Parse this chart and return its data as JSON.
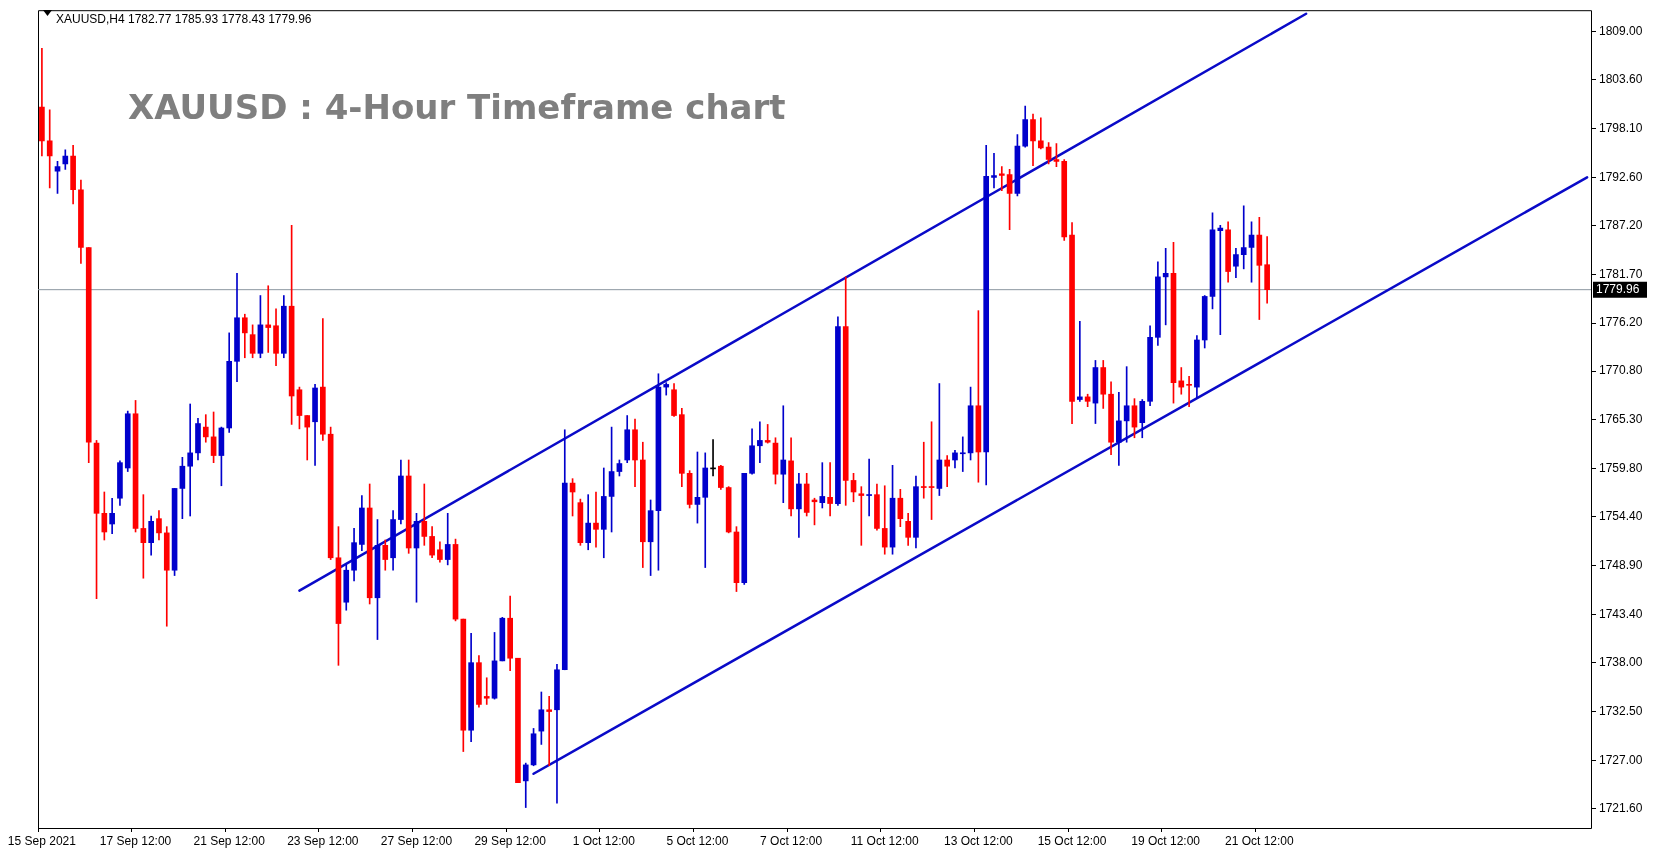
{
  "chart_data": {
    "type": "candlestick",
    "title": "XAUUSD : 4-Hour Timeframe chart",
    "subtitle": "XAUUSD,H4 1782.77 1785.93 1778.43 1779.96",
    "categories": [
      "15 Sep 2021",
      null,
      null,
      null,
      null,
      null,
      null,
      null,
      null,
      null,
      null,
      null,
      "17 Sep 12:00",
      null,
      null,
      null,
      null,
      null,
      null,
      null,
      null,
      null,
      null,
      null,
      "21 Sep 12:00",
      null,
      null,
      null,
      null,
      null,
      null,
      null,
      null,
      null,
      null,
      null,
      "23 Sep 12:00",
      null,
      null,
      null,
      null,
      null,
      null,
      null,
      null,
      null,
      null,
      null,
      "27 Sep 12:00",
      null,
      null,
      null,
      null,
      null,
      null,
      null,
      null,
      null,
      null,
      null,
      "29 Sep 12:00",
      null,
      null,
      null,
      null,
      null,
      null,
      null,
      null,
      null,
      null,
      null,
      "1 Oct 12:00",
      null,
      null,
      null,
      null,
      null,
      null,
      null,
      null,
      null,
      null,
      null,
      "5 Oct 12:00",
      null,
      null,
      null,
      null,
      null,
      null,
      null,
      null,
      null,
      null,
      null,
      "7 Oct 12:00",
      null,
      null,
      null,
      null,
      null,
      null,
      null,
      null,
      null,
      null,
      null,
      "11 Oct 12:00",
      null,
      null,
      null,
      null,
      null,
      null,
      null,
      null,
      null,
      null,
      null,
      "13 Oct 12:00",
      null,
      null,
      null,
      null,
      null,
      null,
      null,
      null,
      null,
      null,
      null,
      "15 Oct 12:00",
      null,
      null,
      null,
      null,
      null,
      null,
      null,
      null,
      null,
      null,
      null,
      "19 Oct 12:00",
      null,
      null,
      null,
      null,
      null,
      null,
      null,
      null,
      null,
      null,
      null,
      "21 Oct 12:00",
      null,
      null,
      null,
      null,
      null,
      null,
      null,
      null,
      null,
      null,
      null,
      null,
      null,
      null,
      null,
      null,
      null,
      null,
      null,
      null,
      null,
      null,
      null,
      null,
      null,
      null,
      null,
      null,
      null,
      null,
      null,
      null,
      null,
      null,
      null,
      null,
      null,
      null,
      null,
      null,
      null,
      null
    ],
    "ohlc": [
      [
        1800.5,
        1807.1,
        1795.0,
        1796.7
      ],
      [
        1796.7,
        1800.2,
        1791.4,
        1795.0
      ],
      [
        1793.3,
        1794.4,
        1790.8,
        1793.8
      ],
      [
        1794.1,
        1795.7,
        1793.5,
        1795.0
      ],
      [
        1795.0,
        1796.2,
        1789.6,
        1791.2
      ],
      [
        1791.2,
        1792.3,
        1782.9,
        1784.7
      ],
      [
        1784.7,
        1784.7,
        1760.5,
        1762.8
      ],
      [
        1762.7,
        1763.0,
        1745.2,
        1754.8
      ],
      [
        1754.8,
        1757.2,
        1751.8,
        1752.7
      ],
      [
        1753.6,
        1756.5,
        1752.5,
        1754.8
      ],
      [
        1756.5,
        1760.7,
        1755.7,
        1760.5
      ],
      [
        1759.9,
        1766.3,
        1759.5,
        1766.0
      ],
      [
        1766.0,
        1767.5,
        1752.7,
        1753.1
      ],
      [
        1753.1,
        1756.9,
        1747.5,
        1751.5
      ],
      [
        1751.5,
        1754.5,
        1750.1,
        1753.9
      ],
      [
        1754.2,
        1755.1,
        1751.8,
        1752.6
      ],
      [
        1752.6,
        1753.3,
        1742.1,
        1748.4
      ],
      [
        1748.4,
        1757.6,
        1747.8,
        1757.6
      ],
      [
        1757.6,
        1761.1,
        1754.2,
        1760.1
      ],
      [
        1760.1,
        1767.1,
        1754.5,
        1761.6
      ],
      [
        1761.6,
        1765.5,
        1760.8,
        1764.9
      ],
      [
        1764.5,
        1765.9,
        1762.8,
        1763.4
      ],
      [
        1763.4,
        1766.2,
        1760.5,
        1761.3
      ],
      [
        1761.3,
        1764.5,
        1757.9,
        1764.4
      ],
      [
        1764.4,
        1775.1,
        1763.9,
        1771.9
      ],
      [
        1771.9,
        1781.8,
        1769.6,
        1776.8
      ],
      [
        1776.8,
        1777.2,
        1772.3,
        1775.1
      ],
      [
        1774.9,
        1776.0,
        1772.3,
        1772.8
      ],
      [
        1772.8,
        1779.3,
        1772.3,
        1776.0
      ],
      [
        1776.0,
        1780.4,
        1772.9,
        1775.7
      ],
      [
        1775.9,
        1777.8,
        1771.4,
        1772.8
      ],
      [
        1772.8,
        1779.3,
        1772.3,
        1778.1
      ],
      [
        1778.1,
        1787.2,
        1764.8,
        1768.0
      ],
      [
        1768.7,
        1769.0,
        1764.3,
        1765.8
      ],
      [
        1765.8,
        1765.8,
        1760.8,
        1764.5
      ],
      [
        1765.1,
        1769.3,
        1760.2,
        1768.9
      ],
      [
        1769.0,
        1776.7,
        1763.0,
        1763.7
      ],
      [
        1763.7,
        1764.5,
        1749.6,
        1749.8
      ],
      [
        1749.8,
        1753.3,
        1737.7,
        1742.4
      ],
      [
        1744.8,
        1749.0,
        1743.9,
        1748.4
      ],
      [
        1748.4,
        1753.1,
        1747.2,
        1751.5
      ],
      [
        1751.3,
        1756.8,
        1750.6,
        1755.4
      ],
      [
        1755.4,
        1758.1,
        1744.6,
        1745.3
      ],
      [
        1745.3,
        1754.1,
        1740.6,
        1751.2
      ],
      [
        1751.2,
        1751.8,
        1748.4,
        1749.6
      ],
      [
        1749.8,
        1755.1,
        1748.4,
        1754.1
      ],
      [
        1754.1,
        1760.8,
        1753.6,
        1759.0
      ],
      [
        1759.0,
        1760.8,
        1750.3,
        1750.9
      ],
      [
        1750.9,
        1754.8,
        1744.8,
        1753.9
      ],
      [
        1753.9,
        1758.1,
        1751.2,
        1752.2
      ],
      [
        1752.2,
        1753.3,
        1749.8,
        1750.1
      ],
      [
        1750.7,
        1751.6,
        1749.3,
        1749.6
      ],
      [
        1749.6,
        1754.8,
        1749.0,
        1751.3
      ],
      [
        1751.3,
        1751.9,
        1742.7,
        1742.9
      ],
      [
        1742.9,
        1742.9,
        1728.0,
        1730.4
      ],
      [
        1730.4,
        1741.3,
        1729.1,
        1738.0
      ],
      [
        1738.0,
        1738.8,
        1733.0,
        1733.3
      ],
      [
        1734.2,
        1736.3,
        1733.3,
        1734.0
      ],
      [
        1734.0,
        1741.4,
        1733.9,
        1738.2
      ],
      [
        1738.2,
        1743.1,
        1738.2,
        1743.0
      ],
      [
        1743.0,
        1745.5,
        1737.1,
        1738.5
      ],
      [
        1738.5,
        1738.5,
        1724.5,
        1724.5
      ],
      [
        1724.7,
        1726.7,
        1721.7,
        1726.5
      ],
      [
        1726.5,
        1730.6,
        1726.4,
        1730.0
      ],
      [
        1730.3,
        1734.7,
        1728.8,
        1732.7
      ],
      [
        1732.7,
        1734.2,
        1726.4,
        1732.5
      ],
      [
        1732.7,
        1737.8,
        1722.2,
        1737.2
      ],
      [
        1737.2,
        1764.2,
        1737.2,
        1758.2
      ],
      [
        1758.2,
        1758.7,
        1754.5,
        1757.2
      ],
      [
        1756.0,
        1756.4,
        1751.2,
        1751.5
      ],
      [
        1751.5,
        1756.9,
        1750.7,
        1753.7
      ],
      [
        1753.7,
        1757.2,
        1751.0,
        1753.0
      ],
      [
        1753.0,
        1759.9,
        1749.8,
        1756.7
      ],
      [
        1756.7,
        1764.5,
        1752.7,
        1759.5
      ],
      [
        1759.5,
        1760.8,
        1759.0,
        1760.4
      ],
      [
        1760.8,
        1765.8,
        1760.5,
        1764.2
      ],
      [
        1764.2,
        1765.4,
        1757.8,
        1760.8
      ],
      [
        1760.8,
        1762.8,
        1748.7,
        1751.6
      ],
      [
        1751.6,
        1756.3,
        1747.8,
        1755.1
      ],
      [
        1755.1,
        1770.5,
        1748.4,
        1769.0
      ],
      [
        1769.0,
        1769.5,
        1768.1,
        1769.3
      ],
      [
        1768.7,
        1769.4,
        1765.7,
        1765.8
      ],
      [
        1765.9,
        1766.6,
        1757.8,
        1759.3
      ],
      [
        1759.3,
        1759.6,
        1755.4,
        1755.8
      ],
      [
        1755.8,
        1761.7,
        1753.7,
        1756.6
      ],
      [
        1756.6,
        1761.6,
        1748.7,
        1759.9
      ],
      [
        1759.8,
        1763.1,
        1759.0,
        1759.8
      ],
      [
        1760.1,
        1760.2,
        1757.5,
        1757.7
      ],
      [
        1757.7,
        1757.8,
        1752.6,
        1752.7
      ],
      [
        1752.7,
        1753.3,
        1746.0,
        1747.0
      ],
      [
        1747.0,
        1759.3,
        1746.8,
        1759.3
      ],
      [
        1759.3,
        1764.3,
        1759.2,
        1762.4
      ],
      [
        1762.4,
        1765.1,
        1760.5,
        1763.0
      ],
      [
        1763.0,
        1764.8,
        1762.7,
        1762.8
      ],
      [
        1762.7,
        1763.3,
        1758.1,
        1759.2
      ],
      [
        1759.2,
        1766.9,
        1756.0,
        1760.8
      ],
      [
        1760.7,
        1763.3,
        1754.5,
        1755.3
      ],
      [
        1755.3,
        1759.3,
        1752.1,
        1758.1
      ],
      [
        1758.1,
        1759.3,
        1754.5,
        1754.9
      ],
      [
        1756.3,
        1756.5,
        1753.5,
        1756.1
      ],
      [
        1756.0,
        1760.5,
        1755.4,
        1756.7
      ],
      [
        1756.6,
        1760.5,
        1754.5,
        1755.9
      ],
      [
        1755.9,
        1776.9,
        1755.7,
        1775.8
      ],
      [
        1775.8,
        1781.4,
        1755.7,
        1758.5
      ],
      [
        1758.5,
        1759.3,
        1756.1,
        1757.2
      ],
      [
        1757.0,
        1757.8,
        1751.2,
        1756.8
      ],
      [
        1756.8,
        1760.9,
        1754.5,
        1756.9
      ],
      [
        1756.9,
        1758.1,
        1752.9,
        1753.1
      ],
      [
        1753.1,
        1757.9,
        1750.2,
        1751.0
      ],
      [
        1751.0,
        1760.2,
        1750.2,
        1756.5
      ],
      [
        1756.5,
        1757.5,
        1753.3,
        1754.2
      ],
      [
        1753.9,
        1754.8,
        1751.2,
        1752.1
      ],
      [
        1752.1,
        1759.0,
        1750.9,
        1757.8
      ],
      [
        1757.8,
        1762.8,
        1756.5,
        1757.7
      ],
      [
        1757.8,
        1765.1,
        1754.1,
        1757.7
      ],
      [
        1757.6,
        1769.4,
        1756.8,
        1760.8
      ],
      [
        1760.8,
        1761.3,
        1757.8,
        1760.1
      ],
      [
        1760.8,
        1761.9,
        1759.9,
        1761.6
      ],
      [
        1761.5,
        1763.4,
        1759.5,
        1761.6
      ],
      [
        1761.6,
        1769.0,
        1760.8,
        1766.9
      ],
      [
        1766.9,
        1777.6,
        1758.3,
        1761.7
      ],
      [
        1761.7,
        1796.2,
        1758.0,
        1792.7
      ],
      [
        1792.6,
        1795.3,
        1791.4,
        1792.8
      ],
      [
        1793.0,
        1793.8,
        1791.1,
        1792.8
      ],
      [
        1792.9,
        1793.5,
        1786.7,
        1790.8
      ],
      [
        1790.8,
        1797.4,
        1790.5,
        1796.1
      ],
      [
        1796.1,
        1800.6,
        1796.0,
        1799.1
      ],
      [
        1799.1,
        1799.7,
        1793.9,
        1796.7
      ],
      [
        1796.7,
        1799.3,
        1795.8,
        1795.9
      ],
      [
        1796.0,
        1796.5,
        1794.1,
        1794.6
      ],
      [
        1794.6,
        1796.4,
        1793.8,
        1794.4
      ],
      [
        1794.4,
        1794.6,
        1785.5,
        1785.9
      ],
      [
        1786.1,
        1787.5,
        1764.9,
        1767.4
      ],
      [
        1767.6,
        1776.4,
        1767.4,
        1767.9
      ],
      [
        1767.9,
        1768.2,
        1766.8,
        1767.4
      ],
      [
        1767.2,
        1772.0,
        1764.9,
        1771.2
      ],
      [
        1771.2,
        1772.0,
        1766.6,
        1768.2
      ],
      [
        1768.2,
        1769.6,
        1761.4,
        1762.8
      ],
      [
        1762.8,
        1768.4,
        1760.2,
        1765.2
      ],
      [
        1765.2,
        1771.3,
        1762.8,
        1766.9
      ],
      [
        1766.9,
        1767.7,
        1763.3,
        1764.5
      ],
      [
        1765.0,
        1767.6,
        1763.3,
        1767.4
      ],
      [
        1767.4,
        1775.9,
        1766.9,
        1774.6
      ],
      [
        1774.6,
        1783.1,
        1773.7,
        1781.4
      ],
      [
        1781.4,
        1784.6,
        1776.0,
        1781.8
      ],
      [
        1781.8,
        1785.3,
        1767.2,
        1769.5
      ],
      [
        1769.7,
        1771.2,
        1768.2,
        1769.0
      ],
      [
        1769.3,
        1770.2,
        1766.8,
        1769.2
      ],
      [
        1769.0,
        1774.8,
        1767.8,
        1774.3
      ],
      [
        1774.3,
        1779.3,
        1773.4,
        1779.2
      ],
      [
        1779.2,
        1788.6,
        1777.8,
        1786.7
      ],
      [
        1786.6,
        1787.2,
        1774.9,
        1786.9
      ],
      [
        1786.7,
        1787.6,
        1780.8,
        1782.0
      ],
      [
        1782.6,
        1784.6,
        1781.3,
        1783.9
      ],
      [
        1783.9,
        1789.4,
        1782.3,
        1784.7
      ],
      [
        1784.7,
        1787.6,
        1780.8,
        1786.1
      ],
      [
        1786.1,
        1788.1,
        1776.6,
        1782.7
      ],
      [
        1782.77,
        1785.93,
        1778.43,
        1779.96
      ],
      null,
      null,
      null,
      null,
      null,
      null,
      null,
      null,
      null,
      null,
      null,
      null,
      null,
      null,
      null,
      null,
      null,
      null,
      null,
      null,
      null,
      null,
      null,
      null,
      null,
      null,
      null,
      null,
      null,
      null,
      null,
      null,
      null,
      null,
      null,
      null,
      null,
      null,
      null,
      null,
      null
    ],
    "colors": [
      "#ff0000",
      "#ff0000",
      "#0000cc",
      "#0000cc",
      "#ff0000",
      "#ff0000",
      "#ff0000",
      "#ff0000",
      "#ff0000",
      "#0000cc",
      "#0000cc",
      "#0000cc",
      "#ff0000",
      "#ff0000",
      "#0000cc",
      "#ff0000",
      "#ff0000",
      "#0000cc",
      "#0000cc",
      "#0000cc",
      "#0000cc",
      "#ff0000",
      "#ff0000",
      "#0000cc",
      "#0000cc",
      "#0000cc",
      "#ff0000",
      "#ff0000",
      "#0000cc",
      "#ff0000",
      "#ff0000",
      "#0000cc",
      "#ff0000",
      "#ff0000",
      "#ff0000",
      "#0000cc",
      "#ff0000",
      "#ff0000",
      "#ff0000",
      "#0000cc",
      "#0000cc",
      "#0000cc",
      "#ff0000",
      "#0000cc",
      "#ff0000",
      "#0000cc",
      "#0000cc",
      "#ff0000",
      "#0000cc",
      "#ff0000",
      "#ff0000",
      "#ff0000",
      "#0000cc",
      "#ff0000",
      "#ff0000",
      "#0000cc",
      "#ff0000",
      "#ff0000",
      "#0000cc",
      "#0000cc",
      "#ff0000",
      "#ff0000",
      "#0000cc",
      "#0000cc",
      "#0000cc",
      "#ff0000",
      "#0000cc",
      "#0000cc",
      "#ff0000",
      "#ff0000",
      "#0000cc",
      "#ff0000",
      "#0000cc",
      "#0000cc",
      "#0000cc",
      "#0000cc",
      "#ff0000",
      "#ff0000",
      "#0000cc",
      "#0000cc",
      "#0000cc",
      "#ff0000",
      "#ff0000",
      "#ff0000",
      "#0000cc",
      "#0000cc",
      "#000000",
      "#ff0000",
      "#ff0000",
      "#ff0000",
      "#0000cc",
      "#0000cc",
      "#0000cc",
      "#ff0000",
      "#ff0000",
      "#0000cc",
      "#ff0000",
      "#0000cc",
      "#ff0000",
      "#ff0000",
      "#0000cc",
      "#ff0000",
      "#0000cc",
      "#ff0000",
      "#ff0000",
      "#ff0000",
      "#0000cc",
      "#ff0000",
      "#ff0000",
      "#0000cc",
      "#ff0000",
      "#ff0000",
      "#0000cc",
      "#ff0000",
      "#ff0000",
      "#0000cc",
      "#ff0000",
      "#0000cc",
      "#0000cc",
      "#0000cc",
      "#ff0000",
      "#0000cc",
      "#0000cc",
      "#ff0000",
      "#ff0000",
      "#0000cc",
      "#0000cc",
      "#ff0000",
      "#ff0000",
      "#ff0000",
      "#ff0000",
      "#ff0000",
      "#ff0000",
      "#0000cc",
      "#ff0000",
      "#0000cc",
      "#ff0000",
      "#ff0000",
      "#0000cc",
      "#0000cc",
      "#ff0000",
      "#0000cc",
      "#0000cc",
      "#0000cc",
      "#0000cc",
      "#ff0000",
      "#ff0000",
      "#ff0000",
      "#0000cc",
      "#0000cc",
      "#0000cc",
      "#0000cc",
      "#ff0000",
      "#0000cc",
      "#0000cc",
      "#0000cc",
      "#ff0000",
      "#ff0000",
      null,
      null,
      null,
      null,
      null,
      null,
      null,
      null,
      null,
      null,
      null,
      null,
      null,
      null,
      null,
      null,
      null,
      null,
      null,
      null,
      null,
      null,
      null,
      null,
      null,
      null,
      null,
      null,
      null,
      null,
      null,
      null,
      null,
      null,
      null,
      null,
      null,
      null,
      null,
      null,
      null
    ],
    "series": [
      {
        "type": "line",
        "color": "#0a0ac8",
        "values": [
          null,
          null,
          null,
          null,
          null,
          null,
          null,
          null,
          null,
          null,
          null,
          null,
          null,
          null,
          null,
          null,
          null,
          null,
          null,
          null,
          null,
          null,
          null,
          null,
          null,
          null,
          null,
          null,
          null,
          null,
          null,
          null,
          null,
          1746.1,
          null,
          null,
          null,
          null,
          null,
          null,
          null,
          null,
          null,
          null,
          null,
          null,
          null,
          null,
          null,
          null,
          null,
          null,
          null,
          null,
          null,
          null,
          null,
          null,
          null,
          null,
          null,
          null,
          null,
          null,
          null,
          null,
          null,
          null,
          null,
          null,
          null,
          null,
          null,
          null,
          null,
          null,
          null,
          null,
          null,
          null,
          null,
          null,
          null,
          null,
          null,
          null,
          null,
          null,
          null,
          null,
          null,
          null,
          null,
          null,
          null,
          null,
          null,
          null,
          null,
          null,
          null,
          null,
          null,
          null,
          null,
          null,
          null,
          null,
          null,
          null,
          null,
          null,
          null,
          null,
          null,
          null,
          null,
          null,
          null,
          null,
          null,
          null,
          null,
          null,
          null,
          null,
          null,
          null,
          null,
          null,
          null,
          null,
          null,
          null,
          null,
          null,
          null,
          null,
          null,
          null,
          null,
          null,
          null,
          null,
          null,
          null,
          null,
          null,
          null,
          null,
          null,
          null,
          null,
          null,
          null,
          null,
          null,
          null,
          null,
          null,
          null,
          null,
          1811.0,
          null,
          null,
          null,
          null,
          null,
          null,
          null,
          null,
          null,
          null,
          null,
          null,
          null,
          null,
          null,
          null,
          null,
          null,
          null,
          null,
          null,
          null,
          null,
          null,
          null,
          null,
          null,
          null,
          null,
          null,
          null,
          null,
          null,
          null,
          null,
          null
        ]
      },
      {
        "type": "line",
        "color": "#0a0ac8",
        "values": [
          null,
          null,
          null,
          null,
          null,
          null,
          null,
          null,
          null,
          null,
          null,
          null,
          null,
          null,
          null,
          null,
          null,
          null,
          null,
          null,
          null,
          null,
          null,
          null,
          null,
          null,
          null,
          null,
          null,
          null,
          null,
          null,
          null,
          null,
          null,
          null,
          null,
          null,
          null,
          null,
          null,
          null,
          null,
          null,
          null,
          null,
          null,
          null,
          null,
          null,
          null,
          null,
          null,
          null,
          null,
          null,
          null,
          null,
          null,
          null,
          null,
          null,
          null,
          1725.5,
          null,
          null,
          null,
          null,
          null,
          null,
          null,
          null,
          null,
          null,
          null,
          null,
          null,
          null,
          null,
          null,
          null,
          null,
          null,
          null,
          null,
          null,
          null,
          null,
          null,
          null,
          null,
          null,
          null,
          null,
          null,
          null,
          null,
          null,
          null,
          null,
          null,
          null,
          null,
          null,
          null,
          null,
          null,
          null,
          null,
          null,
          null,
          null,
          null,
          null,
          null,
          null,
          null,
          null,
          null,
          null,
          null,
          null,
          null,
          null,
          null,
          null,
          null,
          null,
          null,
          null,
          null,
          null,
          null,
          null,
          null,
          null,
          null,
          null,
          null,
          null,
          null,
          null,
          null,
          null,
          null,
          null,
          null,
          null,
          null,
          null,
          null,
          null,
          null,
          null,
          null,
          null,
          null,
          null,
          null,
          null,
          null,
          null,
          null,
          null,
          null,
          null,
          null,
          null,
          null,
          null,
          null,
          null,
          null,
          null,
          null,
          null,
          null,
          null,
          null,
          null,
          null,
          null,
          null,
          null,
          null,
          null,
          null,
          null,
          null,
          null,
          null,
          null,
          null,
          null,
          null,
          null,
          null,
          null,
          1792.6
        ]
      }
    ],
    "ylim": [
      1719.4,
      1811.4
    ],
    "yticks": [
      {
        "value": 1809.0,
        "label": "1809.00"
      },
      {
        "value": 1803.6,
        "label": "1803.60"
      },
      {
        "value": 1798.1,
        "label": "1798.10"
      },
      {
        "value": 1792.6,
        "label": "1792.60"
      },
      {
        "value": 1787.2,
        "label": "1787.20"
      },
      {
        "value": 1781.7,
        "label": "1781.70"
      },
      {
        "value": 1776.2,
        "label": "1776.20"
      },
      {
        "value": 1770.8,
        "label": "1770.80"
      },
      {
        "value": 1765.3,
        "label": "1765.30"
      },
      {
        "value": 1759.8,
        "label": "1759.80"
      },
      {
        "value": 1754.4,
        "label": "1754.40"
      },
      {
        "value": 1748.9,
        "label": "1748.90"
      },
      {
        "value": 1743.4,
        "label": "1743.40"
      },
      {
        "value": 1738.0,
        "label": "1738.00"
      },
      {
        "value": 1732.5,
        "label": "1732.50"
      },
      {
        "value": 1727.0,
        "label": "1727.00"
      },
      {
        "value": 1721.6,
        "label": "1721.60"
      }
    ],
    "ref_lines": [
      {
        "axis": "y",
        "value": 1779.96,
        "label": "1779.96",
        "color": "#8c96a0"
      }
    ]
  }
}
